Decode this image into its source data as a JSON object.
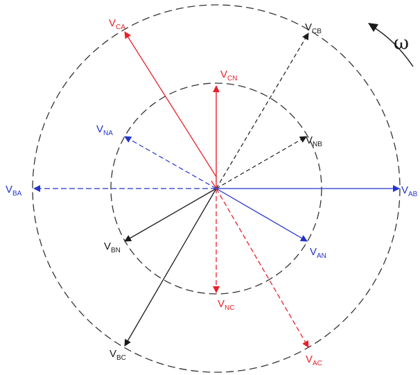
{
  "colors": {
    "red": "#e8202a",
    "blue": "#2233cc",
    "black": "#1a1a1a",
    "circle": "#333333"
  },
  "rotation": {
    "symbol": "ω",
    "direction": "counter-clockwise"
  },
  "phasors": [
    {
      "id": "VCA",
      "base": "V",
      "sub": "CA",
      "color": "red",
      "style": "solid",
      "circle": "outer"
    },
    {
      "id": "VCB",
      "base": "V",
      "sub": "CB",
      "color": "black",
      "style": "dashed",
      "circle": "outer"
    },
    {
      "id": "VCN",
      "base": "V",
      "sub": "CN",
      "color": "red",
      "style": "solid",
      "circle": "inner"
    },
    {
      "id": "VNA",
      "base": "V",
      "sub": "NA",
      "color": "blue",
      "style": "dashed",
      "circle": "inner"
    },
    {
      "id": "VNB",
      "base": "V",
      "sub": "NB",
      "color": "black",
      "style": "dashed",
      "circle": "inner"
    },
    {
      "id": "VBA",
      "base": "V",
      "sub": "BA",
      "color": "blue",
      "style": "dashed",
      "circle": "outer"
    },
    {
      "id": "VAB",
      "base": "V",
      "sub": "AB",
      "color": "blue",
      "style": "solid",
      "circle": "outer"
    },
    {
      "id": "VBN",
      "base": "V",
      "sub": "BN",
      "color": "black",
      "style": "solid",
      "circle": "inner"
    },
    {
      "id": "VAN",
      "base": "V",
      "sub": "AN",
      "color": "blue",
      "style": "solid",
      "circle": "inner"
    },
    {
      "id": "VNC",
      "base": "V",
      "sub": "NC",
      "color": "red",
      "style": "dashed",
      "circle": "inner"
    },
    {
      "id": "VBC",
      "base": "V",
      "sub": "BC",
      "color": "black",
      "style": "solid",
      "circle": "outer"
    },
    {
      "id": "VAC",
      "base": "V",
      "sub": "AC",
      "color": "red",
      "style": "dashed",
      "circle": "outer"
    }
  ]
}
